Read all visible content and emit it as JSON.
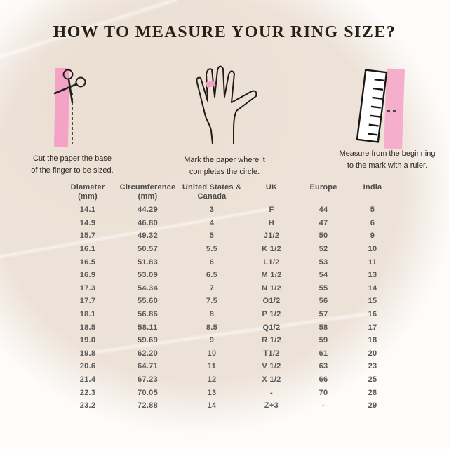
{
  "title": "HOW TO MEASURE YOUR RING SIZE?",
  "steps": [
    {
      "icon": "scissors-cutting-paper-strip-icon",
      "caption_line1": "Cut the paper the base",
      "caption_line2": "of the finger to be sized."
    },
    {
      "icon": "hand-with-ring-mark-icon",
      "caption_line1": "Mark the paper where it",
      "caption_line2": "completes the circle."
    },
    {
      "icon": "ruler-measuring-strip-icon",
      "caption_line1": "Measure from the beginning",
      "caption_line2": "to the mark with a ruler."
    }
  ],
  "table": {
    "headers": [
      {
        "line1": "Diameter",
        "line2": "(mm)"
      },
      {
        "line1": "Circumference",
        "line2": "(mm)"
      },
      {
        "line1": "United States &",
        "line2": "Canada"
      },
      {
        "line1": "UK",
        "line2": ""
      },
      {
        "line1": "Europe",
        "line2": ""
      },
      {
        "line1": "India",
        "line2": ""
      }
    ],
    "rows": [
      [
        "14.1",
        "44.29",
        "3",
        "F",
        "44",
        "5"
      ],
      [
        "14.9",
        "46.80",
        "4",
        "H",
        "47",
        "6"
      ],
      [
        "15.7",
        "49.32",
        "5",
        "J1/2",
        "50",
        "9"
      ],
      [
        "16.1",
        "50.57",
        "5.5",
        "K 1/2",
        "52",
        "10"
      ],
      [
        "16.5",
        "51.83",
        "6",
        "L1/2",
        "53",
        "11"
      ],
      [
        "16.9",
        "53.09",
        "6.5",
        "M 1/2",
        "54",
        "13"
      ],
      [
        "17.3",
        "54.34",
        "7",
        "N 1/2",
        "55",
        "14"
      ],
      [
        "17.7",
        "55.60",
        "7.5",
        "O1/2",
        "56",
        "15"
      ],
      [
        "18.1",
        "56.86",
        "8",
        "P 1/2",
        "57",
        "16"
      ],
      [
        "18.5",
        "58.11",
        "8.5",
        "Q1/2",
        "58",
        "17"
      ],
      [
        "19.0",
        "59.69",
        "9",
        "R 1/2",
        "59",
        "18"
      ],
      [
        "19.8",
        "62.20",
        "10",
        "T1/2",
        "61",
        "20"
      ],
      [
        "20.6",
        "64.71",
        "11",
        "V 1/2",
        "63",
        "23"
      ],
      [
        "21.4",
        "67.23",
        "12",
        "X 1/2",
        "66",
        "25"
      ],
      [
        "22.3",
        "70.05",
        "13",
        "-",
        "70",
        "28"
      ],
      [
        "23.2",
        "72.88",
        "14",
        "Z+3",
        "-",
        "29"
      ]
    ]
  },
  "colors": {
    "background_blob": "#ede2d7",
    "accent_pink": "#f4a3c6",
    "accent_pink_light": "#f6aecd",
    "title_text": "#262019",
    "caption_text": "#2b2724",
    "table_text": "#585858",
    "outline_ink": "#1f1c1a"
  }
}
